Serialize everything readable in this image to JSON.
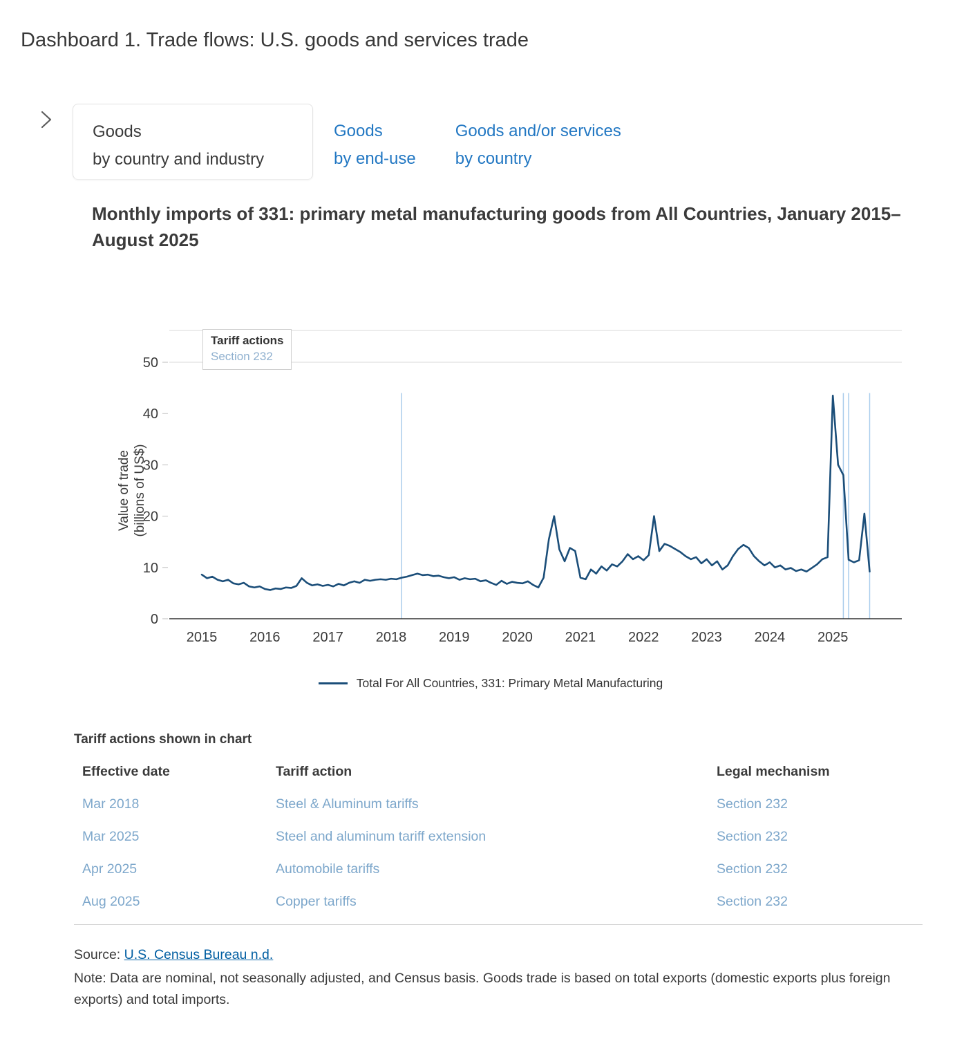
{
  "page": {
    "title": "Dashboard 1. Trade flows: U.S. goods and services trade"
  },
  "colors": {
    "link_blue": "#2378c3",
    "muted_blue": "#7da7cb",
    "source_link_color": "#005ea2",
    "series_color": "#1b4e79",
    "reference_line_color": "#aacdec",
    "annotation_subtitle_color": "#8fb0cf"
  },
  "tabs": [
    {
      "line1": "Goods",
      "line2": "by country and industry",
      "active": true
    },
    {
      "line1": "Goods",
      "line2": "by end-use",
      "active": false
    },
    {
      "line1": "Goods and/or services",
      "line2": "by country",
      "active": false
    }
  ],
  "chart_data": {
    "type": "line",
    "title": "Monthly imports of 331: primary metal manufacturing goods from All Countries, January 2015–August 2025",
    "ylabel": "Value of trade (billions of US$)",
    "ylabel_lines": [
      "Value of trade",
      "(billions of US$)"
    ],
    "xlabel": "",
    "ylim": [
      0,
      50
    ],
    "yticks": [
      0,
      10,
      20,
      30,
      40,
      50
    ],
    "xticks": [
      2015,
      2016,
      2017,
      2018,
      2019,
      2020,
      2021,
      2022,
      2023,
      2024,
      2025
    ],
    "x_unit": "month",
    "x_start": "2015-01",
    "x_end": "2025-08",
    "grid": "top border and 50-level gridline only",
    "legend_position": "bottom",
    "annotation_box": {
      "title": "Tariff actions",
      "subtitle": "Section 232"
    },
    "reference_lines": {
      "color": "#aacdec",
      "dates": [
        "2018-03",
        "2025-03",
        "2025-04",
        "2025-08"
      ]
    },
    "series": [
      {
        "name": "Total For All Countries, 331: Primary Metal Manufacturing",
        "color": "#1b4e79",
        "start": "2015-01",
        "values": [
          8.6,
          7.9,
          8.2,
          7.6,
          7.3,
          7.6,
          6.9,
          6.7,
          7.0,
          6.3,
          6.1,
          6.3,
          5.8,
          5.6,
          5.9,
          5.8,
          6.1,
          6.0,
          6.4,
          7.9,
          7.0,
          6.5,
          6.7,
          6.4,
          6.6,
          6.3,
          6.8,
          6.5,
          7.0,
          7.3,
          7.0,
          7.6,
          7.4,
          7.6,
          7.7,
          7.6,
          7.8,
          7.7,
          8.0,
          8.2,
          8.5,
          8.8,
          8.5,
          8.6,
          8.3,
          8.4,
          8.1,
          7.9,
          8.1,
          7.6,
          7.9,
          7.7,
          7.8,
          7.3,
          7.5,
          7.0,
          6.6,
          7.4,
          6.8,
          7.2,
          7.0,
          6.9,
          7.3,
          6.6,
          6.1,
          8.0,
          15.5,
          20.0,
          13.5,
          11.2,
          13.8,
          13.2,
          8.0,
          7.7,
          9.6,
          8.8,
          10.2,
          9.4,
          10.6,
          10.2,
          11.2,
          12.6,
          11.6,
          12.2,
          11.4,
          12.4,
          20.0,
          13.2,
          14.6,
          14.2,
          13.6,
          13.0,
          12.2,
          11.6,
          12.0,
          10.8,
          11.6,
          10.4,
          11.2,
          9.6,
          10.4,
          12.2,
          13.6,
          14.4,
          13.8,
          12.2,
          11.2,
          10.4,
          11.0,
          10.0,
          10.4,
          9.6,
          9.9,
          9.3,
          9.6,
          9.2,
          9.9,
          10.6,
          11.6,
          12.0,
          43.5,
          30.0,
          28.0,
          11.5,
          11.0,
          11.4,
          20.5,
          9.2
        ]
      }
    ]
  },
  "tariff_table": {
    "heading": "Tariff actions shown in chart",
    "columns": [
      "Effective date",
      "Tariff action",
      "Legal mechanism"
    ],
    "rows": [
      [
        "Mar 2018",
        "Steel & Aluminum tariffs",
        "Section 232"
      ],
      [
        "Mar 2025",
        "Steel and aluminum tariff extension",
        "Section 232"
      ],
      [
        "Apr 2025",
        "Automobile tariffs",
        "Section 232"
      ],
      [
        "Aug 2025",
        "Copper tariffs",
        "Section 232"
      ]
    ]
  },
  "footer": {
    "source_prefix": "Source: ",
    "source_link": "U.S. Census Bureau n.d.",
    "note": "Note: Data are nominal, not seasonally adjusted, and Census basis. Goods trade is based on total exports (domestic exports plus foreign exports) and total imports."
  }
}
